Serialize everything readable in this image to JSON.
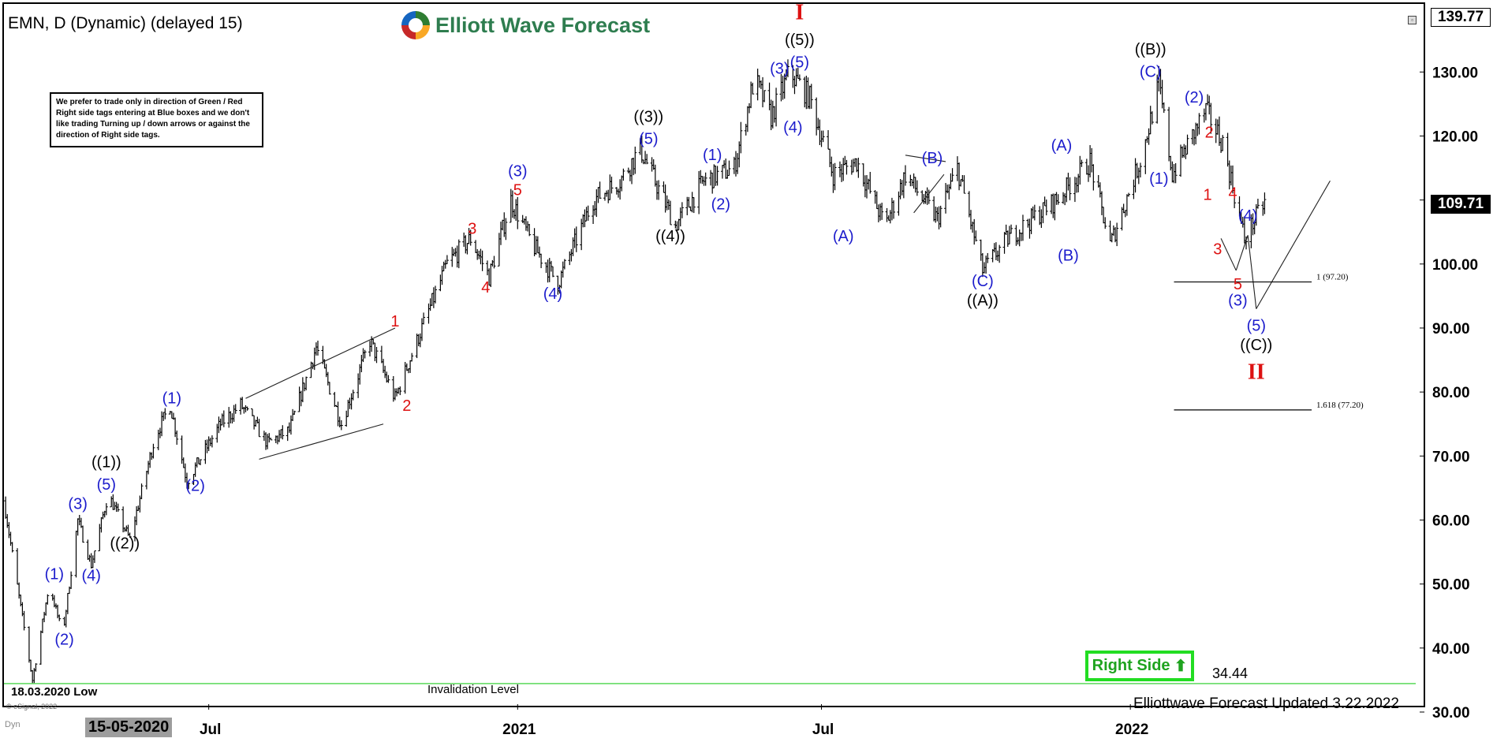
{
  "header": {
    "symbol_title": "EMN, D (Dynamic) (delayed 15)",
    "logo_text": "Elliott Wave Forecast"
  },
  "note": "We prefer to trade only in direction of Green / Red Right side tags entering at Blue boxes and we don't like trading Turning up / down arrows or against the direction of Right side tags.",
  "right_side_tag": {
    "label": "Right Side",
    "direction": "up",
    "color": "#22dd22"
  },
  "invalidation": {
    "value": "34.44",
    "level_label": "Invalidation Level",
    "low_label": "18.03.2020 Low"
  },
  "footer": {
    "updated": "Elliottwave Forecast Updated 3.22.2022",
    "esignal": "© eSignal, 2022",
    "dyn_label": "Dyn",
    "current_date": "15-05-2020"
  },
  "price_badges": {
    "last": "109.71",
    "top": "139.77"
  },
  "chart_data": {
    "type": "ohlc-bars",
    "y_axis": {
      "min": 30,
      "max": 139.77,
      "ticks": [
        "130.00",
        "120.00",
        "110.00",
        "100.00",
        "90.00",
        "80.00",
        "70.00",
        "60.00",
        "50.00",
        "40.00",
        "30.00"
      ]
    },
    "x_axis": {
      "range": [
        "2020-03-01",
        "2022-06-20"
      ],
      "ticks": [
        {
          "date": "2020-07-01",
          "label": "Jul"
        },
        {
          "date": "2021-01-01",
          "label": "2021"
        },
        {
          "date": "2021-07-01",
          "label": "Jul"
        },
        {
          "date": "2022-01-01",
          "label": "2022"
        }
      ]
    },
    "price_path": [
      [
        "2020-03-01",
        63
      ],
      [
        "2020-03-10",
        48
      ],
      [
        "2020-03-18",
        35
      ],
      [
        "2020-03-28",
        50
      ],
      [
        "2020-04-05",
        42
      ],
      [
        "2020-04-14",
        60
      ],
      [
        "2020-04-22",
        53
      ],
      [
        "2020-05-02",
        64
      ],
      [
        "2020-05-15",
        57
      ],
      [
        "2020-05-30",
        73
      ],
      [
        "2020-06-08",
        78
      ],
      [
        "2020-06-18",
        66
      ],
      [
        "2020-07-08",
        75
      ],
      [
        "2020-07-20",
        78
      ],
      [
        "2020-08-05",
        72
      ],
      [
        "2020-08-18",
        74
      ],
      [
        "2020-09-03",
        87
      ],
      [
        "2020-09-18",
        75
      ],
      [
        "2020-10-05",
        88
      ],
      [
        "2020-10-20",
        79
      ],
      [
        "2020-11-05",
        90
      ],
      [
        "2020-11-20",
        100
      ],
      [
        "2020-12-04",
        104
      ],
      [
        "2020-12-15",
        98
      ],
      [
        "2020-12-28",
        110
      ],
      [
        "2021-01-10",
        103
      ],
      [
        "2021-01-25",
        97
      ],
      [
        "2021-02-15",
        110
      ],
      [
        "2021-03-03",
        113
      ],
      [
        "2021-03-15",
        118
      ],
      [
        "2021-04-05",
        106
      ],
      [
        "2021-04-22",
        113
      ],
      [
        "2021-05-10",
        115
      ],
      [
        "2021-05-22",
        129
      ],
      [
        "2021-06-01",
        123
      ],
      [
        "2021-06-12",
        130
      ],
      [
        "2021-06-24",
        126
      ],
      [
        "2021-07-08",
        114
      ],
      [
        "2021-07-22",
        116
      ],
      [
        "2021-08-08",
        106
      ],
      [
        "2021-08-20",
        114
      ],
      [
        "2021-09-08",
        107
      ],
      [
        "2021-09-20",
        115
      ],
      [
        "2021-10-05",
        99
      ],
      [
        "2021-10-20",
        104
      ],
      [
        "2021-11-18",
        110
      ],
      [
        "2021-12-08",
        116
      ],
      [
        "2021-12-20",
        103
      ],
      [
        "2022-01-08",
        117
      ],
      [
        "2022-01-18",
        128
      ],
      [
        "2022-01-26",
        114
      ],
      [
        "2022-02-15",
        124
      ],
      [
        "2022-02-25",
        119
      ],
      [
        "2022-03-10",
        104
      ],
      [
        "2022-03-22",
        109.71
      ]
    ],
    "annotations": [
      {
        "text": "(1)",
        "date": "2020-03-31",
        "price": 50,
        "color": "#1c1ccc",
        "pos": "above"
      },
      {
        "text": "(2)",
        "date": "2020-04-06",
        "price": 43,
        "color": "#1c1ccc",
        "pos": "below"
      },
      {
        "text": "(3)",
        "date": "2020-04-14",
        "price": 61,
        "color": "#1c1ccc",
        "pos": "above"
      },
      {
        "text": "(4)",
        "date": "2020-04-22",
        "price": 53,
        "color": "#1c1ccc",
        "pos": "below"
      },
      {
        "text": "(5)",
        "date": "2020-05-01",
        "price": 64,
        "color": "#1c1ccc",
        "pos": "above"
      },
      {
        "text": "((1))",
        "date": "2020-05-01",
        "price": 67.5,
        "color": "#000000",
        "pos": "above"
      },
      {
        "text": "((2))",
        "date": "2020-05-12",
        "price": 58,
        "color": "#000000",
        "pos": "below"
      },
      {
        "text": "(1)",
        "date": "2020-06-09",
        "price": 77.5,
        "color": "#1c1ccc",
        "pos": "above"
      },
      {
        "text": "(2)",
        "date": "2020-06-23",
        "price": 67,
        "color": "#1c1ccc",
        "pos": "below"
      },
      {
        "text": "1",
        "date": "2020-10-20",
        "price": 89.5,
        "color": "#dd1111",
        "pos": "above"
      },
      {
        "text": "2",
        "date": "2020-10-27",
        "price": 79.5,
        "color": "#dd1111",
        "pos": "below"
      },
      {
        "text": "3",
        "date": "2020-12-05",
        "price": 104,
        "color": "#dd1111",
        "pos": "above"
      },
      {
        "text": "4",
        "date": "2020-12-13",
        "price": 98,
        "color": "#dd1111",
        "pos": "below"
      },
      {
        "text": "5",
        "date": "2021-01-01",
        "price": 110,
        "color": "#dd1111",
        "pos": "above"
      },
      {
        "text": "(3)",
        "date": "2021-01-01",
        "price": 113,
        "color": "#1c1ccc",
        "pos": "above"
      },
      {
        "text": "(4)",
        "date": "2021-01-22",
        "price": 97,
        "color": "#1c1ccc",
        "pos": "below"
      },
      {
        "text": "(5)",
        "date": "2021-03-20",
        "price": 118,
        "color": "#1c1ccc",
        "pos": "above"
      },
      {
        "text": "((3))",
        "date": "2021-03-20",
        "price": 121.5,
        "color": "#000000",
        "pos": "above"
      },
      {
        "text": "((4))",
        "date": "2021-04-02",
        "price": 106,
        "color": "#000000",
        "pos": "below"
      },
      {
        "text": "(1)",
        "date": "2021-04-27",
        "price": 115.5,
        "color": "#1c1ccc",
        "pos": "above"
      },
      {
        "text": "(2)",
        "date": "2021-05-02",
        "price": 111,
        "color": "#1c1ccc",
        "pos": "below"
      },
      {
        "text": "(3)",
        "date": "2021-06-06",
        "price": 129,
        "color": "#1c1ccc",
        "pos": "above"
      },
      {
        "text": "(4)",
        "date": "2021-06-14",
        "price": 123,
        "color": "#1c1ccc",
        "pos": "below"
      },
      {
        "text": "(5)",
        "date": "2021-06-18",
        "price": 130,
        "color": "#1c1ccc",
        "pos": "above"
      },
      {
        "text": "((5))",
        "date": "2021-06-18",
        "price": 133.5,
        "color": "#000000",
        "pos": "above"
      },
      {
        "text": "I",
        "date": "2021-06-18",
        "price": 137.5,
        "color": "#dd1111",
        "pos": "above"
      },
      {
        "text": "(A)",
        "date": "2021-07-14",
        "price": 106,
        "color": "#1c1ccc",
        "pos": "below"
      },
      {
        "text": "(B)",
        "date": "2021-09-05",
        "price": 115,
        "color": "#1c1ccc",
        "pos": "above"
      },
      {
        "text": "(C)",
        "date": "2021-10-05",
        "price": 99,
        "color": "#1c1ccc",
        "pos": "below"
      },
      {
        "text": "((A))",
        "date": "2021-10-05",
        "price": 96,
        "color": "#000000",
        "pos": "below"
      },
      {
        "text": "(A)",
        "date": "2021-11-21",
        "price": 117,
        "color": "#1c1ccc",
        "pos": "above"
      },
      {
        "text": "(B)",
        "date": "2021-11-25",
        "price": 103,
        "color": "#1c1ccc",
        "pos": "below"
      },
      {
        "text": "(C)",
        "date": "2022-01-13",
        "price": 128.5,
        "color": "#1c1ccc",
        "pos": "above"
      },
      {
        "text": "((B))",
        "date": "2022-01-13",
        "price": 132,
        "color": "#000000",
        "pos": "above"
      },
      {
        "text": "(1)",
        "date": "2022-01-18",
        "price": 115,
        "color": "#1c1ccc",
        "pos": "below"
      },
      {
        "text": "(2)",
        "date": "2022-02-08",
        "price": 124.5,
        "color": "#1c1ccc",
        "pos": "above"
      },
      {
        "text": "1",
        "date": "2022-02-16",
        "price": 112.5,
        "color": "#dd1111",
        "pos": "below"
      },
      {
        "text": "2",
        "date": "2022-02-17",
        "price": 119,
        "color": "#dd1111",
        "pos": "above"
      },
      {
        "text": "3",
        "date": "2022-02-22",
        "price": 104,
        "color": "#dd1111",
        "pos": "below"
      },
      {
        "text": "4",
        "date": "2022-03-03",
        "price": 109.5,
        "color": "#dd1111",
        "pos": "above"
      },
      {
        "text": "(4)",
        "date": "2022-03-12",
        "price": 106,
        "color": "#1c1ccc",
        "pos": "above"
      },
      {
        "text": "5",
        "date": "2022-03-06",
        "price": 98.5,
        "color": "#dd1111",
        "pos": "below"
      },
      {
        "text": "(3)",
        "date": "2022-03-06",
        "price": 96,
        "color": "#1c1ccc",
        "pos": "below"
      },
      {
        "text": "(5)",
        "date": "2022-03-17",
        "price": 92,
        "color": "#1c1ccc",
        "pos": "below"
      },
      {
        "text": "((C))",
        "date": "2022-03-17",
        "price": 89,
        "color": "#000000",
        "pos": "below"
      },
      {
        "text": "II",
        "date": "2022-03-17",
        "price": 85.5,
        "color": "#dd1111",
        "pos": "below"
      }
    ],
    "trendlines": [
      {
        "from": [
          "2020-07-23",
          79
        ],
        "to": [
          "2020-10-20",
          90
        ]
      },
      {
        "from": [
          "2020-07-31",
          69.5
        ],
        "to": [
          "2020-10-13",
          75
        ]
      },
      {
        "from": [
          "2021-08-20",
          117
        ],
        "to": [
          "2021-09-13",
          116
        ]
      },
      {
        "from": [
          "2021-08-25",
          108
        ],
        "to": [
          "2021-09-12",
          114
        ]
      },
      {
        "from": [
          "2022-02-24",
          104
        ],
        "to": [
          "2022-03-05",
          99
        ]
      },
      {
        "from": [
          "2022-03-05",
          99
        ],
        "to": [
          "2022-03-12",
          104.5
        ]
      },
      {
        "from": [
          "2022-03-12",
          104.5
        ],
        "to": [
          "2022-03-17",
          93
        ]
      },
      {
        "from": [
          "2022-03-17",
          93
        ],
        "to": [
          "2022-04-30",
          113
        ]
      }
    ],
    "levels": [
      {
        "label": "1 (97.20)",
        "value": 97.2,
        "from": "2022-01-27",
        "to": "2022-04-19"
      },
      {
        "label": "1.618 (77.20)",
        "value": 77.2,
        "from": "2022-01-27",
        "to": "2022-04-19"
      },
      {
        "value": 34.44,
        "from": "2020-03-01",
        "to": "2022-06-20",
        "color": "#22cc22"
      }
    ]
  }
}
